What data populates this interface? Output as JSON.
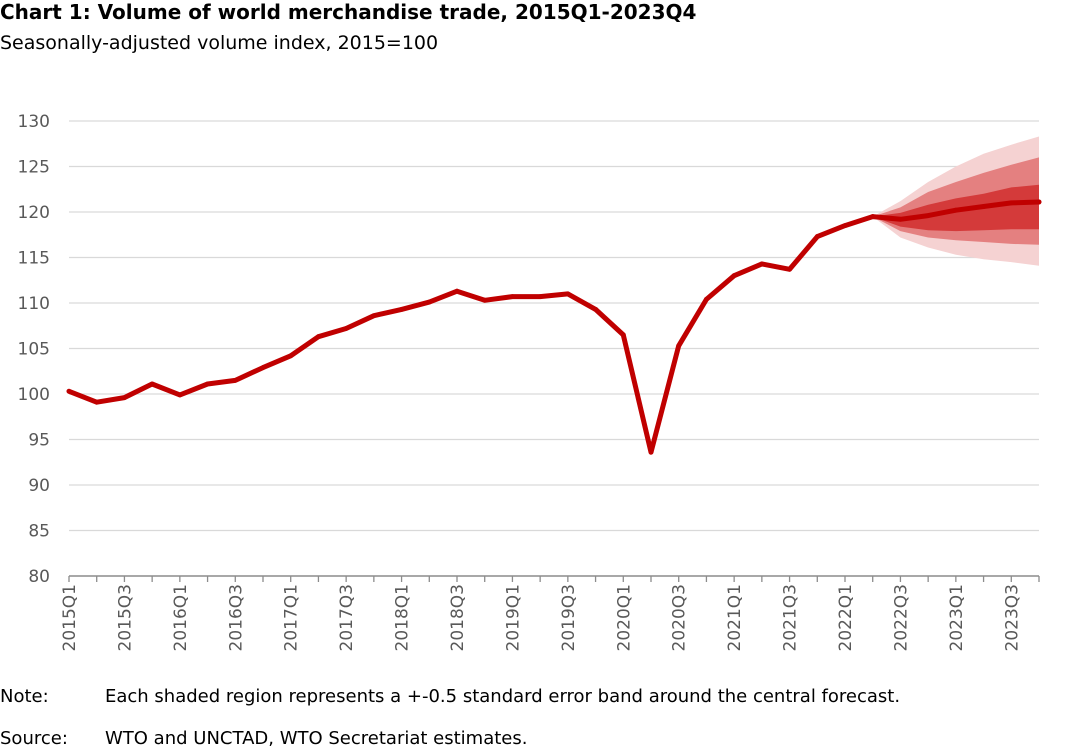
{
  "chart_data": {
    "type": "line",
    "title": "Chart 1: Volume of world merchandise trade, 2015Q1-2023Q4",
    "subtitle": "Seasonally-adjusted volume index, 2015=100",
    "ylim": [
      80,
      130
    ],
    "yticks": [
      80,
      85,
      90,
      95,
      100,
      105,
      110,
      115,
      120,
      125,
      130
    ],
    "grid": true,
    "x": [
      "2015Q1",
      "2015Q2",
      "2015Q3",
      "2015Q4",
      "2016Q1",
      "2016Q2",
      "2016Q3",
      "2016Q4",
      "2017Q1",
      "2017Q2",
      "2017Q3",
      "2017Q4",
      "2018Q1",
      "2018Q2",
      "2018Q3",
      "2018Q4",
      "2019Q1",
      "2019Q2",
      "2019Q3",
      "2019Q4",
      "2020Q1",
      "2020Q2",
      "2020Q3",
      "2020Q4",
      "2021Q1",
      "2021Q2",
      "2021Q3",
      "2021Q4",
      "2022Q1",
      "2022Q2",
      "2022Q3",
      "2022Q4",
      "2023Q1",
      "2023Q2",
      "2023Q3",
      "2023Q4"
    ],
    "x_tick_labels": [
      "2015Q1",
      "2015Q3",
      "2016Q1",
      "2016Q3",
      "2017Q1",
      "2017Q3",
      "2018Q1",
      "2018Q3",
      "2019Q1",
      "2019Q3",
      "2020Q1",
      "2020Q3",
      "2021Q1",
      "2021Q3",
      "2022Q1",
      "2022Q3",
      "2023Q1",
      "2023Q3"
    ],
    "series": [
      {
        "values": [
          100.3,
          99.1,
          99.6,
          101.1,
          99.9,
          101.1,
          101.5,
          102.9,
          104.2,
          106.3,
          107.2,
          108.6,
          109.3,
          110.1,
          111.3,
          110.3,
          110.7,
          110.7,
          111.0,
          109.3,
          106.5,
          93.6,
          105.3,
          110.4,
          113.0,
          114.3,
          113.7,
          117.3,
          118.5,
          119.5,
          119.2,
          119.6,
          120.2,
          120.6,
          121.0,
          121.1
        ],
        "color": "#c00000"
      }
    ],
    "forecast_start": "2022Q2",
    "bands": {
      "inner": {
        "upper": [
          119.5,
          119.9,
          120.8,
          121.5,
          122.0,
          122.7,
          123.0
        ],
        "lower": [
          119.5,
          118.4,
          118.0,
          117.9,
          118.0,
          118.1,
          118.1
        ]
      },
      "middle": {
        "upper": [
          119.5,
          120.5,
          122.2,
          123.3,
          124.3,
          125.2,
          126.0
        ],
        "lower": [
          119.5,
          117.9,
          117.2,
          116.9,
          116.7,
          116.5,
          116.4
        ]
      },
      "outer": {
        "upper": [
          119.5,
          121.2,
          123.3,
          125.0,
          126.4,
          127.4,
          128.3
        ],
        "lower": [
          119.5,
          117.2,
          116.1,
          115.3,
          114.8,
          114.5,
          114.1
        ]
      }
    },
    "colors": {
      "line": "#c00000",
      "band_inner": "#d43a3a",
      "band_middle": "#e48080",
      "band_outer": "#f5d2d2",
      "grid": "#d9d9d9",
      "axis": "#595959"
    }
  },
  "footer": {
    "note_label": "Note:",
    "note_text": "Each shaded region represents a +-0.5 standard error band around the central forecast.",
    "source_label": "Source:",
    "source_text": "WTO and UNCTAD, WTO Secretariat estimates."
  }
}
